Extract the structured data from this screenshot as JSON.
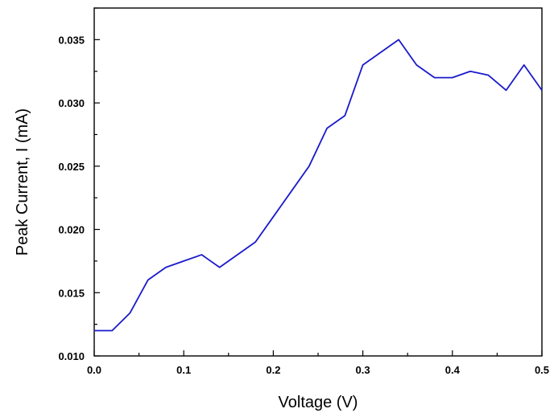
{
  "chart_data": {
    "type": "line",
    "title": "",
    "xlabel": "Voltage (V)",
    "ylabel": "Peak Current, I (mA)",
    "xlim": [
      0.0,
      0.5
    ],
    "ylim": [
      0.01,
      0.0375
    ],
    "x_ticks": [
      "0.0",
      "0.1",
      "0.2",
      "0.3",
      "0.4",
      "0.5"
    ],
    "y_ticks": [
      "0.010",
      "0.015",
      "0.020",
      "0.025",
      "0.030",
      "0.035"
    ],
    "grid": false,
    "legend": "none",
    "series": [
      {
        "color": "#1a1acc",
        "x": [
          0.0,
          0.02,
          0.04,
          0.06,
          0.08,
          0.1,
          0.12,
          0.14,
          0.16,
          0.18,
          0.2,
          0.22,
          0.24,
          0.26,
          0.28,
          0.3,
          0.32,
          0.34,
          0.36,
          0.38,
          0.4,
          0.42,
          0.44,
          0.46,
          0.48,
          0.5
        ],
        "y": [
          0.012,
          0.012,
          0.0134,
          0.016,
          0.017,
          0.0175,
          0.018,
          0.017,
          0.018,
          0.019,
          0.021,
          0.023,
          0.025,
          0.028,
          0.029,
          0.033,
          0.034,
          0.035,
          0.033,
          0.032,
          0.032,
          0.0325,
          0.0322,
          0.031,
          0.033,
          0.031
        ]
      }
    ]
  }
}
